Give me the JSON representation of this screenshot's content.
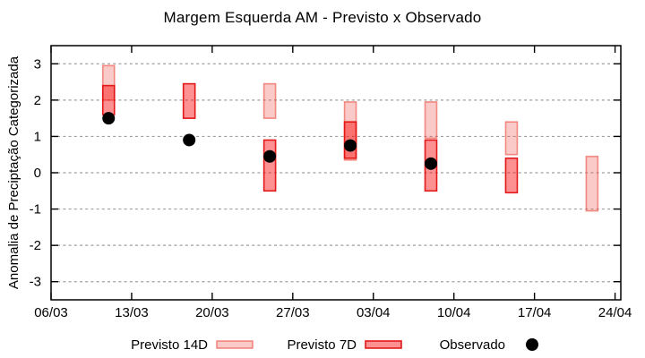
{
  "chart_data": {
    "type": "bar",
    "subtype": "range-bars-with-points",
    "title": "Margem Esquerda AM - Previsto x Observado",
    "xlabel": "",
    "ylabel": "Anomalia de Preciptação Categorizada",
    "ylim": [
      -3.5,
      3.5
    ],
    "y_ticks": [
      3,
      2,
      1,
      0,
      -1,
      -2,
      -3
    ],
    "x_ticks": [
      {
        "label": "06/03",
        "day_offset": 0
      },
      {
        "label": "13/03",
        "day_offset": 7
      },
      {
        "label": "20/03",
        "day_offset": 14
      },
      {
        "label": "27/03",
        "day_offset": 21
      },
      {
        "label": "03/04",
        "day_offset": 28
      },
      {
        "label": "10/04",
        "day_offset": 35
      },
      {
        "label": "17/04",
        "day_offset": 42
      },
      {
        "label": "24/04",
        "day_offset": 49
      }
    ],
    "x_day_range": [
      0,
      49.5
    ],
    "grid": "horizontal-dashed",
    "legend_position": "bottom-center",
    "series": [
      {
        "name": "Previsto 14D",
        "type": "range-bar",
        "key": "previsto_14d"
      },
      {
        "name": "Previsto 7D",
        "type": "range-bar",
        "key": "previsto_7d"
      },
      {
        "name": "Observado",
        "type": "point",
        "key": "observado"
      }
    ],
    "bars": [
      {
        "date": "11/03",
        "day_offset": 5,
        "previsto_14d": [
          2.0,
          2.95
        ],
        "previsto_7d": [
          1.6,
          2.4
        ],
        "observado": 1.5
      },
      {
        "date": "18/03",
        "day_offset": 12,
        "previsto_14d": null,
        "previsto_7d": [
          1.5,
          2.45
        ],
        "observado": 0.9
      },
      {
        "date": "25/03",
        "day_offset": 19,
        "previsto_14d": [
          1.5,
          2.45
        ],
        "previsto_7d": [
          -0.5,
          0.9
        ],
        "observado": 0.45
      },
      {
        "date": "01/04",
        "day_offset": 26,
        "previsto_14d": [
          0.35,
          1.95
        ],
        "previsto_7d": [
          0.4,
          1.4
        ],
        "observado": 0.75
      },
      {
        "date": "08/04",
        "day_offset": 33,
        "previsto_14d": [
          0.95,
          1.95
        ],
        "previsto_7d": [
          -0.5,
          0.9
        ],
        "observado": 0.25
      },
      {
        "date": "15/04",
        "day_offset": 40,
        "previsto_14d": [
          0.5,
          1.4
        ],
        "previsto_7d": [
          -0.55,
          0.4
        ],
        "observado": null
      },
      {
        "date": "22/04",
        "day_offset": 47,
        "previsto_14d": [
          -1.05,
          0.45
        ],
        "previsto_7d": null,
        "observado": null
      }
    ],
    "colors": {
      "previsto_14d_fill": "rgba(235,80,70,0.30)",
      "previsto_14d_stroke": "rgba(235,80,70,0.62)",
      "previsto_7d_fill": "rgba(250,8,8,0.45)",
      "previsto_7d_stroke": "rgba(225,16,16,0.95)",
      "observado": "#000000",
      "grid": "#9e9e9e",
      "axis": "#000000",
      "background": "#ffffff"
    }
  }
}
